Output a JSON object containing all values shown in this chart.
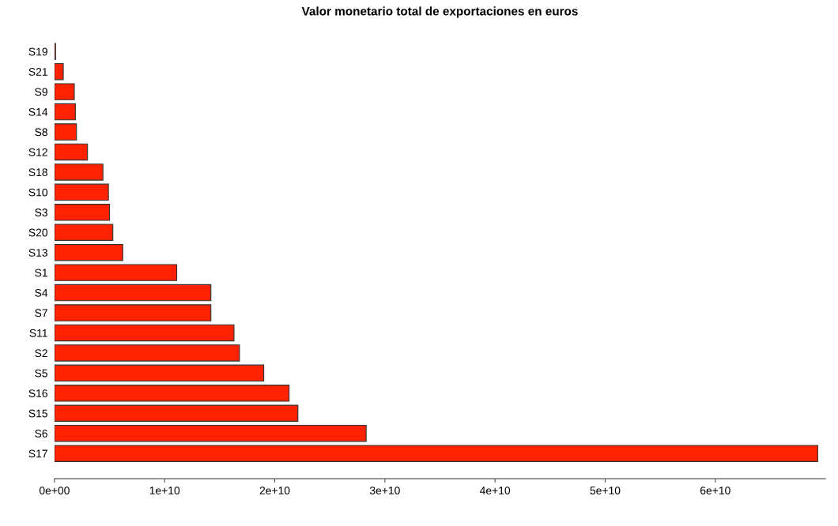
{
  "chart_data": {
    "type": "bar",
    "orientation": "horizontal",
    "title": "Valor monetario total de exportaciones en euros",
    "categories": [
      "S19",
      "S21",
      "S9",
      "S14",
      "S8",
      "S12",
      "S18",
      "S10",
      "S3",
      "S20",
      "S13",
      "S1",
      "S4",
      "S7",
      "S11",
      "S2",
      "S5",
      "S16",
      "S15",
      "S6",
      "S17"
    ],
    "values": [
      100000000.0,
      800000000.0,
      1800000000.0,
      1900000000.0,
      2000000000.0,
      3000000000.0,
      4400000000.0,
      4900000000.0,
      5000000000.0,
      5300000000.0,
      6200000000.0,
      11100000000.0,
      14200000000.0,
      14200000000.0,
      16300000000.0,
      16800000000.0,
      19000000000.0,
      21300000000.0,
      22100000000.0,
      28300000000.0,
      69300000000.0
    ],
    "color": "#ff2200",
    "xlim": [
      0,
      70000000000.0
    ],
    "xticks": [
      {
        "value": 0,
        "label": "0e+00"
      },
      {
        "value": 10000000000.0,
        "label": "1e+10"
      },
      {
        "value": 20000000000.0,
        "label": "2e+10"
      },
      {
        "value": 30000000000.0,
        "label": "3e+10"
      },
      {
        "value": 40000000000.0,
        "label": "4e+10"
      },
      {
        "value": 50000000000.0,
        "label": "5e+10"
      },
      {
        "value": 60000000000.0,
        "label": "6e+10"
      }
    ],
    "grid": false,
    "legend": false
  }
}
